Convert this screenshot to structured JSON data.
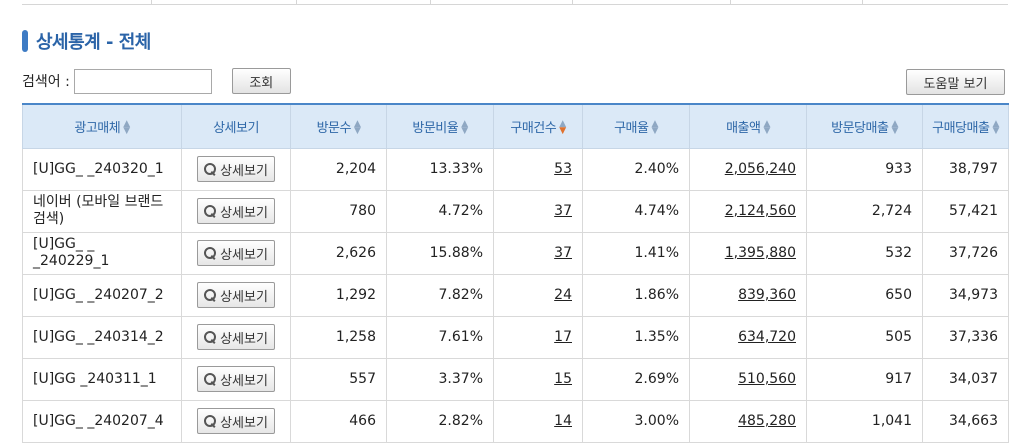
{
  "section_title": "상세통계 - 전체",
  "search": {
    "label": "검색어 :",
    "value": "",
    "button_label": "조회"
  },
  "help_button_label": "도움말 보기",
  "table": {
    "headers": [
      "광고매체",
      "상세보기",
      "방문수",
      "방문비율",
      "구매건수",
      "구매율",
      "매출액",
      "방문당매출",
      "구매당매출"
    ],
    "detail_button_label": "상세보기",
    "rows": [
      {
        "media": "[U]GG_ _240320_1",
        "visits": "2,204",
        "visit_ratio": "13.33%",
        "purchases": "53",
        "purchase_rate": "2.40%",
        "sales": "2,056,240",
        "sales_per_visit": "933",
        "sales_per_purchase": "38,797"
      },
      {
        "media": "네이버 (모바일 브랜드 검색)",
        "visits": "780",
        "visit_ratio": "4.72%",
        "purchases": "37",
        "purchase_rate": "4.74%",
        "sales": "2,124,560",
        "sales_per_visit": "2,724",
        "sales_per_purchase": "57,421"
      },
      {
        "media": "[U]GG_ _ _240229_1",
        "visits": "2,626",
        "visit_ratio": "15.88%",
        "purchases": "37",
        "purchase_rate": "1.41%",
        "sales": "1,395,880",
        "sales_per_visit": "532",
        "sales_per_purchase": "37,726"
      },
      {
        "media": "[U]GG_ _240207_2",
        "visits": "1,292",
        "visit_ratio": "7.82%",
        "purchases": "24",
        "purchase_rate": "1.86%",
        "sales": "839,360",
        "sales_per_visit": "650",
        "sales_per_purchase": "34,973"
      },
      {
        "media": "[U]GG_ _240314_2",
        "visits": "1,258",
        "visit_ratio": "7.61%",
        "purchases": "17",
        "purchase_rate": "1.35%",
        "sales": "634,720",
        "sales_per_visit": "505",
        "sales_per_purchase": "37,336"
      },
      {
        "media": "[U]GG _240311_1",
        "visits": "557",
        "visit_ratio": "3.37%",
        "purchases": "15",
        "purchase_rate": "2.69%",
        "sales": "510,560",
        "sales_per_visit": "917",
        "sales_per_purchase": "34,037"
      },
      {
        "media": "[U]GG_ _240207_4",
        "visits": "466",
        "visit_ratio": "2.82%",
        "purchases": "14",
        "purchase_rate": "3.00%",
        "sales": "485,280",
        "sales_per_visit": "1,041",
        "sales_per_purchase": "34,663"
      }
    ]
  },
  "colors": {
    "accent": "#2b64a8",
    "header_bg": "#dbe9f7",
    "sort_active": "#e0722e"
  },
  "icons": {
    "sort": "sort-updown-icon",
    "search": "magnifier-icon",
    "title": "title-bar-icon"
  }
}
